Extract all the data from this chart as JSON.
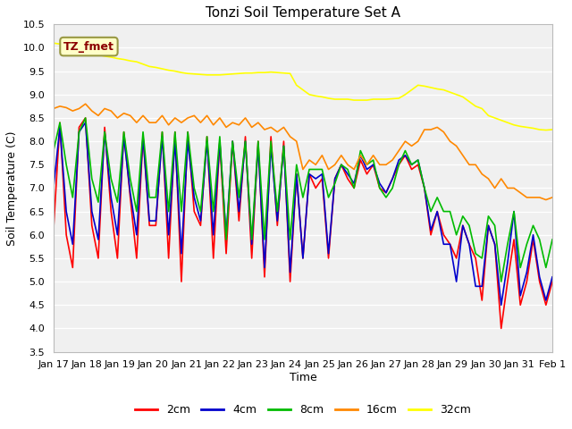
{
  "title": "Tonzi Soil Temperature Set A",
  "xlabel": "Time",
  "ylabel": "Soil Temperature (C)",
  "ylim": [
    3.5,
    10.5
  ],
  "annotation_text": "TZ_fmet",
  "background_color": "#f0f0f0",
  "plot_bg_color": "#f0f0f0",
  "grid_color": "white",
  "legend_labels": [
    "2cm",
    "4cm",
    "8cm",
    "16cm",
    "32cm"
  ],
  "legend_colors": [
    "#ff0000",
    "#0000cc",
    "#00bb00",
    "#ff8800",
    "#ffff00"
  ],
  "line_width": 1.2,
  "x_tick_labels": [
    "Jan 17",
    "Jan 18",
    "Jan 19",
    "Jan 20",
    "Jan 21",
    "Jan 22",
    "Jan 23",
    "Jan 24",
    "Jan 25",
    "Jan 26",
    "Jan 27",
    "Jan 28",
    "Jan 29",
    "Jan 30",
    "Jan 31",
    "Feb 1"
  ],
  "yticks": [
    3.5,
    4.0,
    4.5,
    5.0,
    5.5,
    6.0,
    6.5,
    7.0,
    7.5,
    8.0,
    8.5,
    9.0,
    9.5,
    10.0,
    10.5
  ],
  "depth_2cm": [
    6.1,
    8.4,
    6.0,
    5.3,
    8.3,
    8.5,
    6.2,
    5.5,
    8.3,
    6.5,
    5.5,
    8.2,
    6.8,
    5.5,
    8.1,
    6.2,
    6.2,
    8.2,
    5.5,
    8.2,
    5.0,
    8.2,
    6.5,
    6.2,
    8.1,
    5.5,
    8.0,
    5.6,
    8.0,
    6.3,
    8.1,
    5.5,
    8.0,
    5.1,
    8.1,
    6.2,
    8.0,
    5.0,
    7.3,
    5.5,
    7.3,
    7.0,
    7.2,
    5.5,
    7.2,
    7.5,
    7.2,
    7.0,
    7.6,
    7.3,
    7.5,
    7.0,
    6.9,
    7.2,
    7.5,
    7.7,
    7.4,
    7.5,
    7.0,
    6.0,
    6.5,
    6.0,
    5.8,
    5.5,
    6.2,
    5.8,
    5.5,
    4.6,
    6.2,
    5.8,
    4.0,
    5.0,
    5.9,
    4.5,
    5.0,
    5.9,
    5.0,
    4.5,
    5.0
  ],
  "depth_4cm": [
    7.0,
    8.3,
    6.5,
    5.8,
    8.2,
    8.4,
    6.5,
    5.9,
    8.2,
    6.8,
    6.0,
    8.1,
    6.9,
    6.0,
    8.1,
    6.3,
    6.3,
    8.1,
    6.0,
    8.0,
    5.6,
    8.0,
    6.8,
    6.3,
    8.0,
    6.0,
    8.0,
    6.0,
    8.0,
    6.5,
    8.0,
    5.8,
    7.9,
    5.3,
    7.9,
    6.3,
    7.9,
    5.2,
    7.3,
    5.5,
    7.3,
    7.2,
    7.3,
    5.6,
    7.2,
    7.5,
    7.3,
    7.1,
    7.7,
    7.4,
    7.5,
    7.1,
    6.9,
    7.2,
    7.6,
    7.7,
    7.5,
    7.6,
    7.0,
    6.1,
    6.5,
    5.8,
    5.8,
    5.0,
    6.2,
    5.8,
    4.9,
    4.9,
    6.2,
    5.8,
    4.5,
    5.4,
    6.5,
    4.7,
    5.2,
    6.0,
    5.1,
    4.6,
    5.1
  ],
  "depth_8cm": [
    7.8,
    8.4,
    7.5,
    6.8,
    8.2,
    8.5,
    7.2,
    6.7,
    8.2,
    7.2,
    6.7,
    8.2,
    7.2,
    6.5,
    8.2,
    6.8,
    6.8,
    8.2,
    6.5,
    8.2,
    6.5,
    8.2,
    7.0,
    6.5,
    8.1,
    6.5,
    8.1,
    5.9,
    8.0,
    6.8,
    8.0,
    5.9,
    8.0,
    5.9,
    8.0,
    6.5,
    7.9,
    5.9,
    7.5,
    6.8,
    7.4,
    7.4,
    7.4,
    6.8,
    7.1,
    7.5,
    7.4,
    7.0,
    7.8,
    7.5,
    7.6,
    7.0,
    6.8,
    7.0,
    7.5,
    7.8,
    7.5,
    7.6,
    7.0,
    6.5,
    6.8,
    6.5,
    6.5,
    6.0,
    6.4,
    6.2,
    5.6,
    5.5,
    6.4,
    6.2,
    5.0,
    5.8,
    6.5,
    5.3,
    5.8,
    6.2,
    5.9,
    5.3,
    5.9
  ],
  "depth_16cm": [
    8.7,
    8.75,
    8.72,
    8.65,
    8.7,
    8.8,
    8.65,
    8.55,
    8.7,
    8.65,
    8.5,
    8.6,
    8.55,
    8.4,
    8.55,
    8.4,
    8.4,
    8.55,
    8.35,
    8.5,
    8.4,
    8.5,
    8.55,
    8.4,
    8.55,
    8.35,
    8.5,
    8.3,
    8.4,
    8.35,
    8.5,
    8.3,
    8.4,
    8.25,
    8.3,
    8.2,
    8.3,
    8.1,
    8.0,
    7.4,
    7.6,
    7.5,
    7.7,
    7.4,
    7.5,
    7.7,
    7.5,
    7.4,
    7.7,
    7.5,
    7.7,
    7.5,
    7.5,
    7.6,
    7.8,
    8.0,
    7.9,
    8.0,
    8.25,
    8.25,
    8.3,
    8.2,
    8.0,
    7.9,
    7.7,
    7.5,
    7.5,
    7.3,
    7.2,
    7.0,
    7.2,
    7.0,
    7.0,
    6.9,
    6.8,
    6.8,
    6.8,
    6.75,
    6.8
  ],
  "depth_32cm": [
    10.1,
    10.08,
    10.05,
    10.02,
    10.0,
    9.97,
    9.9,
    9.85,
    9.82,
    9.8,
    9.77,
    9.75,
    9.72,
    9.7,
    9.65,
    9.6,
    9.58,
    9.55,
    9.52,
    9.5,
    9.47,
    9.45,
    9.44,
    9.43,
    9.42,
    9.42,
    9.42,
    9.43,
    9.44,
    9.45,
    9.46,
    9.46,
    9.47,
    9.47,
    9.48,
    9.47,
    9.46,
    9.45,
    9.2,
    9.1,
    9.0,
    8.97,
    8.95,
    8.92,
    8.9,
    8.9,
    8.9,
    8.88,
    8.88,
    8.88,
    8.9,
    8.9,
    8.9,
    8.91,
    8.92,
    9.0,
    9.1,
    9.2,
    9.18,
    9.15,
    9.12,
    9.1,
    9.05,
    9.0,
    8.95,
    8.85,
    8.75,
    8.7,
    8.55,
    8.5,
    8.45,
    8.4,
    8.35,
    8.32,
    8.3,
    8.28,
    8.25,
    8.24,
    8.25
  ]
}
